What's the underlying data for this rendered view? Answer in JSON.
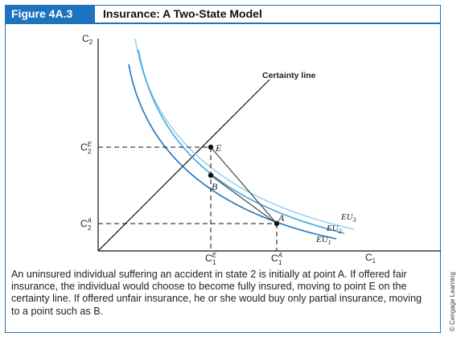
{
  "figure": {
    "label": "Figure 4A.3",
    "title": "Insurance: A Two-State Model"
  },
  "diagram": {
    "y_axis_label": "C",
    "y_axis_sub": "2",
    "x_axis_label": "C",
    "x_axis_sub": "1",
    "certainty_line_label": "Certainty line",
    "points": {
      "E": "E",
      "B": "B",
      "A": "A"
    },
    "ticks": {
      "c2E": {
        "base": "C",
        "sup": "E",
        "sub": "2"
      },
      "c2A": {
        "base": "C",
        "sup": "A",
        "sub": "2"
      },
      "c1E": {
        "base": "C",
        "sup": "E",
        "sub": "1"
      },
      "c1A": {
        "base": "C",
        "sup": "A",
        "sub": "1"
      }
    },
    "curves": {
      "eu3": {
        "base": "EU",
        "sub": "3"
      },
      "eu2": {
        "base": "EU",
        "sub": "2"
      },
      "eu1": {
        "base": "EU",
        "sub": "1"
      }
    }
  },
  "caption": "An uninsured individual suffering an accident in state 2 is initially at point A. If offered fair insurance, the individual would choose to become fully insured, moving to point E on the certainty line. If offered unfair insurance, he or she would buy only partial insurance, moving to a point such as B.",
  "credit": "© Cengage Learning",
  "colors": {
    "accent": "#1e73be",
    "eu1": "#1e73be",
    "eu2": "#3fa9dc",
    "eu3": "#9bd3ee"
  }
}
